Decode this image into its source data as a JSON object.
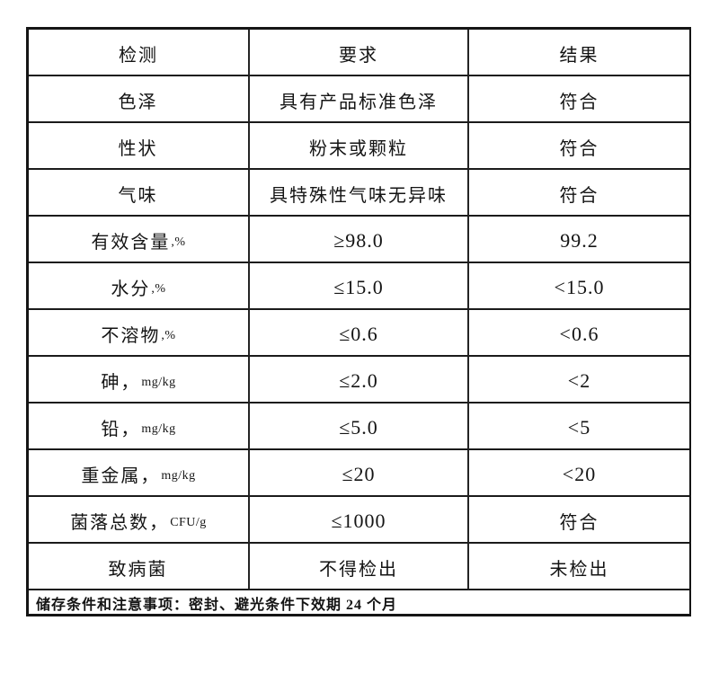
{
  "table": {
    "headers": {
      "test": "检测",
      "requirement": "要求",
      "result": "结果"
    },
    "rows": [
      {
        "test": "色泽",
        "suffix": "",
        "requirement": "具有产品标准色泽",
        "result": "符合"
      },
      {
        "test": "性状",
        "suffix": "",
        "requirement": "粉末或颗粒",
        "result": "符合"
      },
      {
        "test": "气味",
        "suffix": "",
        "requirement": "具特殊性气味无异味",
        "result": "符合"
      },
      {
        "test": "有效含量",
        "suffix": ",%",
        "requirement": "≥98.0",
        "result": "99.2"
      },
      {
        "test": "水分",
        "suffix": ",%",
        "requirement": "≤15.0",
        "result": "<15.0"
      },
      {
        "test": "不溶物",
        "suffix": ",%",
        "requirement": "≤0.6",
        "result": "<0.6"
      },
      {
        "test": "砷，",
        "suffix": "mg/kg",
        "requirement": "≤2.0",
        "result": "<2"
      },
      {
        "test": "铅，",
        "suffix": "mg/kg",
        "requirement": "≤5.0",
        "result": "<5"
      },
      {
        "test": "重金属，",
        "suffix": "mg/kg",
        "requirement": "≤20",
        "result": "<20"
      },
      {
        "test": "菌落总数，",
        "suffix": "CFU/g",
        "requirement": "≤1000",
        "result": "符合"
      },
      {
        "test": "致病菌",
        "suffix": "",
        "requirement": "不得检出",
        "result": "未检出"
      }
    ],
    "footer": "储存条件和注意事项：密封、避光条件下效期 24 个月"
  }
}
